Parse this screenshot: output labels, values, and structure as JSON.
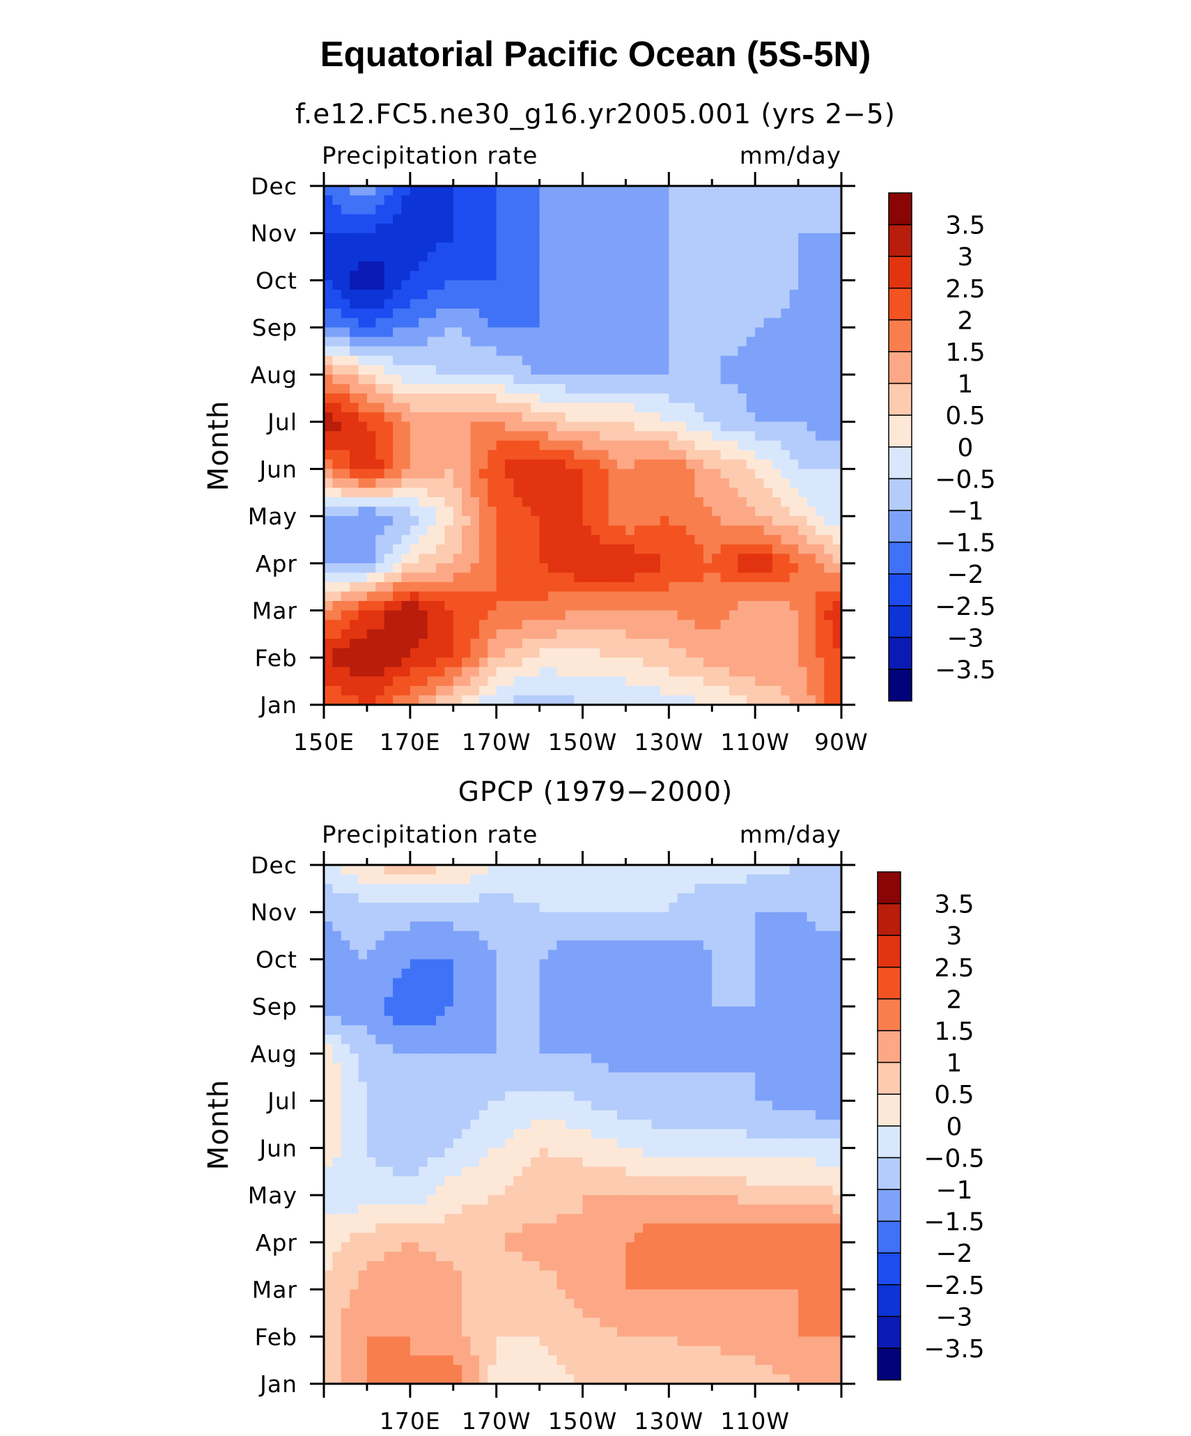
{
  "title": "Equatorial Pacific Ocean (5S-5N)",
  "colors": {
    "levels": [
      -3.5,
      -3,
      -2.5,
      -2,
      -1.5,
      -1,
      -0.5,
      0,
      0.5,
      1,
      1.5,
      2,
      2.5,
      3,
      3.5
    ],
    "palette": [
      "#02027a",
      "#0a1bb5",
      "#0d34d6",
      "#1d4df0",
      "#3f72f6",
      "#7ea2f9",
      "#b4ccfb",
      "#d8e7fc",
      "#fde8d8",
      "#fdcbb0",
      "#fca886",
      "#f87e4e",
      "#f35321",
      "#e23410",
      "#b91d0b",
      "#8a0505"
    ]
  },
  "chart_data": [
    {
      "type": "heatmap",
      "subtitle": "f.e12.FC5.ne30_g16.yr2005.001 (yrs 2−5)",
      "left_label": "Precipitation rate",
      "right_label": "mm/day",
      "ylabel": "Month",
      "x_range": [
        150,
        270
      ],
      "x_ticks": [
        150,
        170,
        190,
        210,
        230,
        250,
        270
      ],
      "x_tick_labels": [
        "150E",
        "170E",
        "170W",
        "150W",
        "130W",
        "110W",
        "90W"
      ],
      "y_tick_labels": [
        "Jan",
        "Feb",
        "Mar",
        "Apr",
        "May",
        "Jun",
        "Jul",
        "Aug",
        "Sep",
        "Oct",
        "Nov",
        "Dec"
      ],
      "colorbar_labels": [
        "3.5",
        "3",
        "2.5",
        "2",
        "1.5",
        "1",
        "0.5",
        "0",
        "−0.5",
        "−1",
        "−1.5",
        "−2",
        "−2.5",
        "−3",
        "−3.5"
      ],
      "x": [
        150,
        160,
        170,
        180,
        190,
        200,
        210,
        220,
        230,
        240,
        250,
        260,
        270
      ],
      "months": [
        "Jan",
        "Feb",
        "Mar",
        "Apr",
        "May",
        "Jun",
        "Jul",
        "Aug",
        "Sep",
        "Oct",
        "Nov",
        "Dec"
      ],
      "z": [
        [
          2.0,
          2.5,
          1.5,
          0.5,
          -0.5,
          -0.8,
          -0.5,
          -0.5,
          -0.3,
          0.0,
          0.5,
          1.0,
          2.5
        ],
        [
          3.0,
          3.5,
          3.0,
          2.5,
          1.0,
          0.3,
          0.3,
          0.5,
          0.8,
          1.2,
          1.5,
          1.5,
          2.5
        ],
        [
          1.5,
          2.5,
          3.5,
          2.5,
          2.0,
          1.8,
          1.5,
          1.5,
          1.5,
          1.8,
          1.0,
          1.5,
          3.0
        ],
        [
          -1.0,
          -1.2,
          0.5,
          1.0,
          2.0,
          2.5,
          3.0,
          3.0,
          2.5,
          2.0,
          3.0,
          2.0,
          1.0
        ],
        [
          -1.0,
          -1.5,
          -0.8,
          0.5,
          2.0,
          2.5,
          2.5,
          1.5,
          2.0,
          1.5,
          1.0,
          0.5,
          -0.5
        ],
        [
          1.5,
          3.0,
          1.5,
          1.0,
          2.5,
          3.0,
          2.5,
          1.5,
          2.0,
          1.0,
          0.5,
          -0.5,
          -0.5
        ],
        [
          3.5,
          2.5,
          1.5,
          1.5,
          1.5,
          1.0,
          0.5,
          0.5,
          0.0,
          -0.5,
          -1.0,
          -1.0,
          -1.5
        ],
        [
          1.5,
          0.5,
          -0.3,
          -0.5,
          -0.5,
          -1.0,
          -1.0,
          -1.0,
          -1.0,
          -1.0,
          -1.2,
          -1.0,
          -1.2
        ],
        [
          -1.5,
          -2.0,
          -1.5,
          -1.0,
          -1.5,
          -1.5,
          -1.2,
          -1.2,
          -1.0,
          -0.8,
          -1.0,
          -1.2,
          -1.5
        ],
        [
          -2.5,
          -3.5,
          -2.5,
          -2.0,
          -2.0,
          -1.5,
          -1.2,
          -1.2,
          -1.0,
          -0.5,
          -0.5,
          -1.0,
          -1.5
        ],
        [
          -2.5,
          -2.5,
          -3.0,
          -2.5,
          -2.0,
          -1.5,
          -1.2,
          -1.2,
          -1.0,
          -1.0,
          -1.0,
          -1.0,
          -1.0
        ],
        [
          -2.0,
          -1.0,
          -2.5,
          -2.5,
          -2.0,
          -1.5,
          -1.2,
          -1.2,
          -1.0,
          -1.0,
          -1.0,
          -0.8,
          -0.8
        ]
      ]
    },
    {
      "type": "heatmap",
      "subtitle": "GPCP (1979−2000)",
      "left_label": "Precipitation rate",
      "right_label": "mm/day",
      "ylabel": "Month",
      "x_range": [
        150,
        270
      ],
      "x_ticks": [
        170,
        190,
        210,
        230,
        250
      ],
      "x_tick_labels": [
        "170E",
        "170W",
        "150W",
        "130W",
        "110W"
      ],
      "y_tick_labels": [
        "Jan",
        "Feb",
        "Mar",
        "Apr",
        "May",
        "Jun",
        "Jul",
        "Aug",
        "Sep",
        "Oct",
        "Nov",
        "Dec"
      ],
      "colorbar_labels": [
        "3.5",
        "3",
        "2.5",
        "2",
        "1.5",
        "1",
        "0.5",
        "0",
        "−0.5",
        "−1",
        "−1.5",
        "−2",
        "−2.5",
        "−3",
        "−3.5"
      ],
      "x": [
        150,
        160,
        170,
        180,
        190,
        200,
        210,
        220,
        230,
        240,
        250,
        260,
        270
      ],
      "months": [
        "Jan",
        "Feb",
        "Mar",
        "Apr",
        "May",
        "Jun",
        "Jul",
        "Aug",
        "Sep",
        "Oct",
        "Nov",
        "Dec"
      ],
      "z": [
        [
          0.5,
          1.5,
          1.5,
          2.0,
          0.3,
          0.3,
          0.5,
          0.5,
          0.5,
          0.5,
          0.8,
          1.0,
          1.5
        ],
        [
          0.8,
          1.5,
          1.5,
          1.2,
          0.5,
          0.5,
          0.8,
          1.0,
          1.0,
          1.2,
          1.2,
          1.5,
          1.5
        ],
        [
          0.5,
          1.2,
          1.5,
          1.2,
          0.5,
          0.8,
          1.2,
          1.5,
          1.5,
          1.5,
          1.5,
          1.5,
          1.5
        ],
        [
          0.3,
          0.8,
          1.0,
          0.8,
          1.0,
          1.2,
          1.0,
          1.5,
          2.0,
          2.0,
          1.8,
          2.0,
          2.0
        ],
        [
          -0.3,
          -0.3,
          -0.3,
          0.3,
          0.5,
          0.8,
          1.0,
          1.0,
          1.0,
          1.0,
          0.8,
          0.8,
          0.5
        ],
        [
          0.3,
          -0.5,
          -0.8,
          -0.5,
          0.0,
          0.5,
          0.3,
          0.0,
          -0.3,
          -0.3,
          -0.3,
          -0.3,
          -0.3
        ],
        [
          0.5,
          -0.5,
          -1.0,
          -1.0,
          -0.5,
          -0.3,
          -0.5,
          -0.8,
          -0.8,
          -0.8,
          -1.0,
          -1.2,
          -1.5
        ],
        [
          0.3,
          -0.8,
          -1.0,
          -1.0,
          -1.0,
          -1.0,
          -1.0,
          -1.2,
          -1.2,
          -1.2,
          -1.0,
          -1.2,
          -1.2
        ],
        [
          -1.5,
          -1.2,
          -2.0,
          -1.5,
          -1.0,
          -1.0,
          -1.5,
          -1.5,
          -1.5,
          -1.0,
          -1.0,
          -1.2,
          -1.2
        ],
        [
          -1.2,
          -1.0,
          -1.5,
          -1.5,
          -1.0,
          -1.0,
          -1.5,
          -1.5,
          -1.5,
          -1.0,
          -1.0,
          -1.2,
          -1.2
        ],
        [
          -1.0,
          -0.8,
          -0.8,
          -0.8,
          -0.8,
          -0.5,
          -0.5,
          -0.5,
          -0.5,
          -0.8,
          -1.0,
          -1.0,
          -0.8
        ],
        [
          -0.3,
          0.5,
          0.8,
          0.5,
          0.0,
          -0.3,
          -0.3,
          -0.3,
          -0.3,
          -0.3,
          -0.3,
          -0.5,
          -0.5
        ]
      ]
    }
  ]
}
